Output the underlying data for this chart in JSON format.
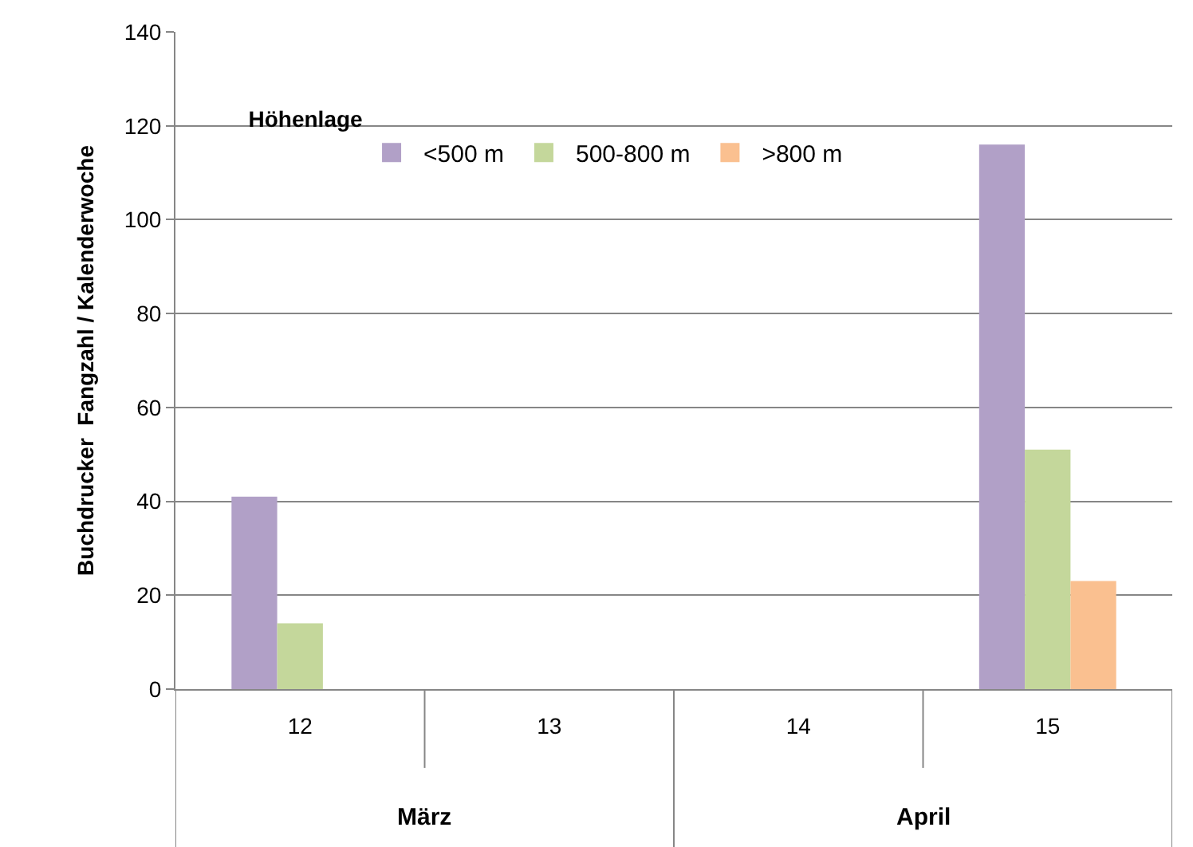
{
  "chart_data": {
    "type": "bar",
    "ylabel": "Buchdrucker  Fangzahl / Kalenderwoche",
    "legend_title": "Höhenlage",
    "categories": [
      "12",
      "13",
      "14",
      "15"
    ],
    "series": [
      {
        "name": "<500 m",
        "color": "#b1a0c7",
        "values": [
          41,
          0,
          0,
          116
        ]
      },
      {
        "name": "500-800 m",
        "color": "#c4d79b",
        "values": [
          14,
          0,
          0,
          51
        ]
      },
      {
        "name": ">800 m",
        "color": "#fac090",
        "values": [
          0,
          0,
          0,
          23
        ]
      }
    ],
    "ylim": [
      0,
      140
    ],
    "yticks": [
      0,
      20,
      40,
      60,
      80,
      100,
      120,
      140
    ],
    "grid": "y",
    "legend": "top left",
    "annotations": [
      "März",
      "April"
    ]
  }
}
